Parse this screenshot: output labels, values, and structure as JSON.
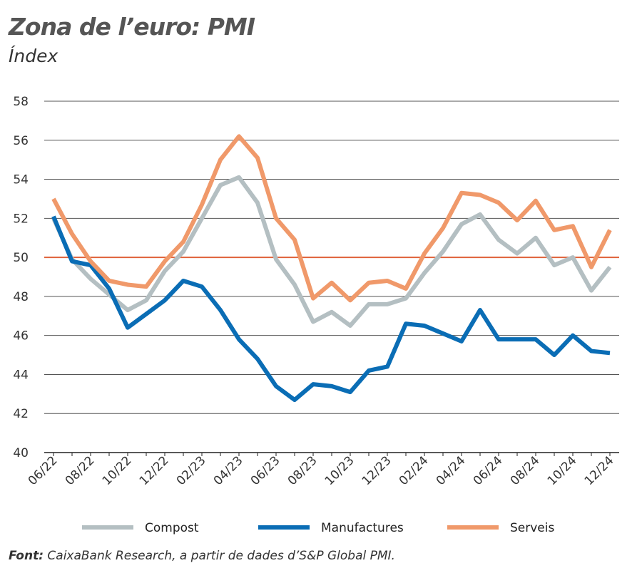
{
  "chart_data": {
    "type": "line",
    "title": "Zona de l’euro: PMI",
    "subtitle": "Índex",
    "x": [
      "06/22",
      "07/22",
      "08/22",
      "09/22",
      "10/22",
      "11/22",
      "12/22",
      "01/23",
      "02/23",
      "03/23",
      "04/23",
      "05/23",
      "06/23",
      "07/23",
      "08/23",
      "09/23",
      "10/23",
      "11/23",
      "12/23",
      "01/24",
      "02/24",
      "03/24",
      "04/24",
      "05/24",
      "06/24",
      "07/24",
      "08/24",
      "09/24",
      "10/24",
      "11/24",
      "12/24"
    ],
    "xticks": [
      "06/22",
      "08/22",
      "10/22",
      "12/22",
      "02/23",
      "04/23",
      "06/23",
      "08/23",
      "10/23",
      "12/23",
      "02/24",
      "04/24",
      "06/24",
      "08/24",
      "10/24",
      "12/24"
    ],
    "yticks": [
      40,
      42,
      44,
      46,
      48,
      50,
      52,
      54,
      56,
      58
    ],
    "ylim": [
      40,
      58
    ],
    "grid": true,
    "reference_line": {
      "value": 50,
      "color": "#e0623a"
    },
    "legend_position": "bottom",
    "series": [
      {
        "name": "Compost",
        "color": "#b4bfc2",
        "values": [
          52.0,
          49.9,
          48.9,
          48.1,
          47.3,
          47.8,
          49.3,
          50.3,
          52.0,
          53.7,
          54.1,
          52.8,
          49.9,
          48.6,
          46.7,
          47.2,
          46.5,
          47.6,
          47.6,
          47.9,
          49.2,
          50.3,
          51.7,
          52.2,
          50.9,
          50.2,
          51.0,
          49.6,
          50.0,
          48.3,
          49.5
        ]
      },
      {
        "name": "Manufactures",
        "color": "#0a6db5",
        "values": [
          52.1,
          49.8,
          49.6,
          48.4,
          46.4,
          47.1,
          47.8,
          48.8,
          48.5,
          47.3,
          45.8,
          44.8,
          43.4,
          42.7,
          43.5,
          43.4,
          43.1,
          44.2,
          44.4,
          46.6,
          46.5,
          46.1,
          45.7,
          47.3,
          45.8,
          45.8,
          45.8,
          45.0,
          46.0,
          45.2,
          45.1
        ]
      },
      {
        "name": "Serveis",
        "color": "#f0996a",
        "values": [
          53.0,
          51.2,
          49.8,
          48.8,
          48.6,
          48.5,
          49.8,
          50.8,
          52.7,
          55.0,
          56.2,
          55.1,
          52.0,
          50.9,
          47.9,
          48.7,
          47.8,
          48.7,
          48.8,
          48.4,
          50.2,
          51.5,
          53.3,
          53.2,
          52.8,
          51.9,
          52.9,
          51.4,
          51.6,
          49.5,
          51.4
        ]
      }
    ]
  },
  "footer": {
    "label": "Font:",
    "text": " CaixaBank Research, a partir de dades d’S&P Global PMI."
  }
}
